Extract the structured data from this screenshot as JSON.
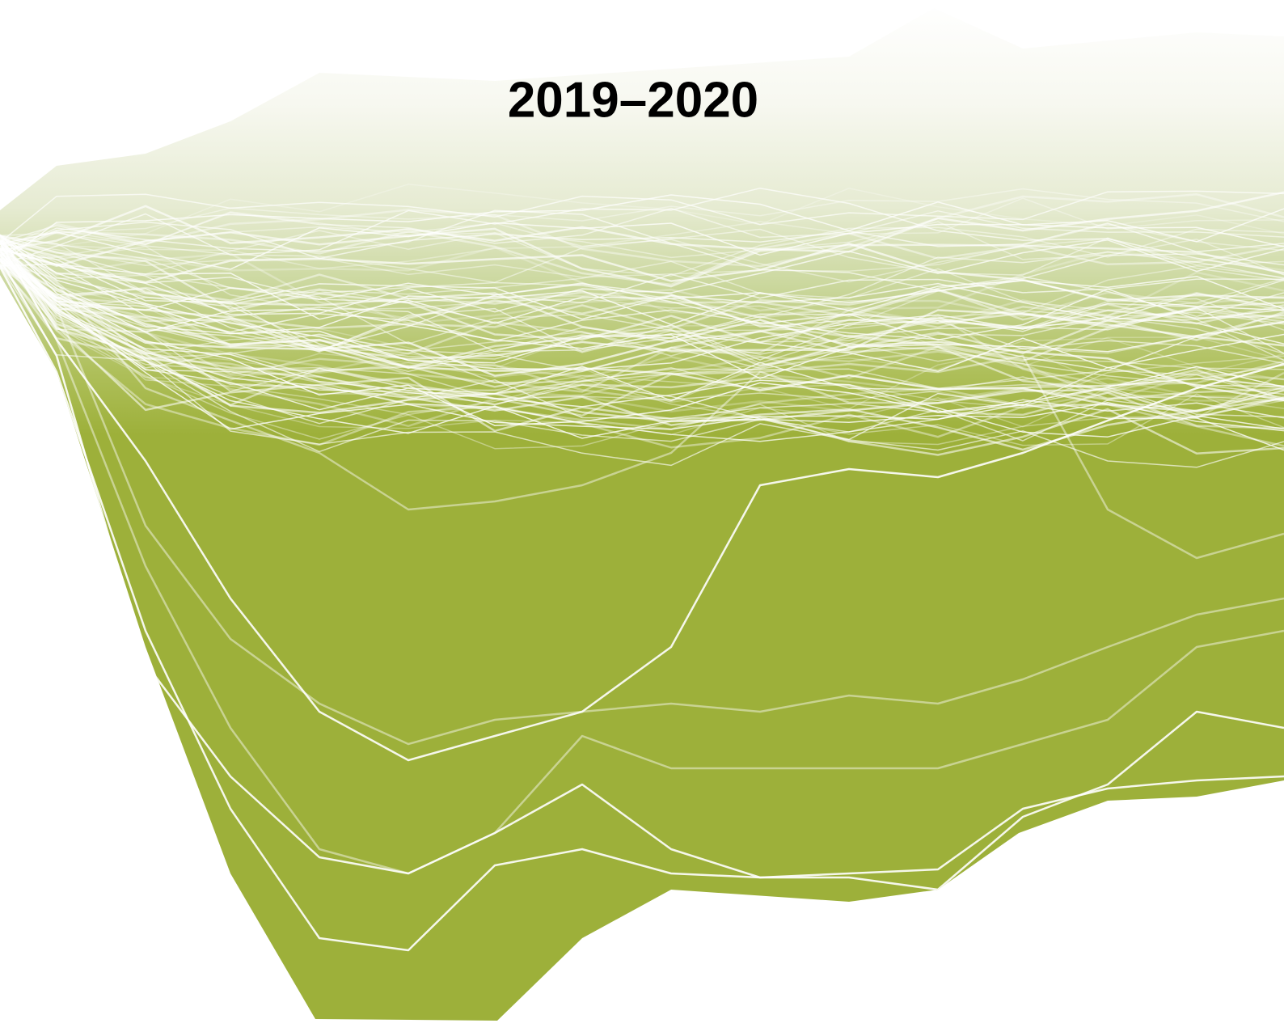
{
  "header": {
    "title": "2019–2020"
  }
}
